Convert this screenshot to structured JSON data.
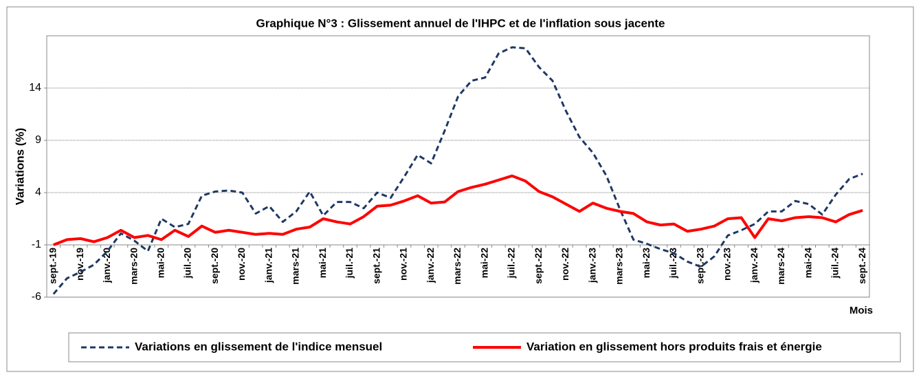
{
  "chart_data": {
    "type": "line",
    "title": "Graphique N°3 : Glissement annuel de l'IHPC et de l'inflation sous jacente",
    "y_label": "Variations (%)",
    "x_label": "Mois",
    "categories": [
      "sept.-19",
      null,
      "nov.-19",
      null,
      "janv.-20",
      null,
      "mars-20",
      null,
      "mai-20",
      null,
      "juil.-20",
      null,
      "sept.-20",
      null,
      "nov.-20",
      null,
      "janv.-21",
      null,
      "mars-21",
      null,
      "mai-21",
      null,
      "juil.-21",
      null,
      "sept.-21",
      null,
      "nov.-21",
      null,
      "janv.-22",
      null,
      "mars-22",
      null,
      "mai-22",
      null,
      "juil.-22",
      null,
      "sept.-22",
      null,
      "nov.-22",
      null,
      "janv.-23",
      null,
      "mars-23",
      null,
      "mai-23",
      null,
      "juil.-23",
      null,
      "sept.-23",
      null,
      "nov.-23",
      null,
      "janv.-24",
      null,
      "mars-24",
      null,
      "mai-24",
      null,
      "juil.-24",
      null,
      "sept.-24"
    ],
    "series": [
      {
        "name": "Variations en glissement de l'indice mensuel",
        "color": "#1f3864",
        "line_style": "dashed",
        "values": [
          -5.7,
          -4.2,
          -3.6,
          -2.9,
          -1.6,
          0.1,
          -0.6,
          -1.6,
          1.5,
          0.7,
          1.0,
          3.7,
          4.1,
          4.2,
          4.0,
          2.0,
          2.7,
          1.2,
          2.2,
          4.1,
          1.8,
          3.1,
          3.1,
          2.5,
          4.0,
          3.5,
          5.5,
          7.6,
          6.8,
          9.9,
          13.2,
          14.7,
          15.0,
          17.3,
          17.9,
          17.8,
          16.0,
          14.7,
          11.8,
          9.3,
          7.8,
          5.6,
          2.4,
          -0.5,
          -0.9,
          -1.4,
          -1.8,
          -2.6,
          -3.1,
          -2.1,
          -0.1,
          0.4,
          1.0,
          2.2,
          2.2,
          3.2,
          2.9,
          1.9,
          3.8,
          5.3,
          5.8
        ]
      },
      {
        "name": "Variation en glissement hors produits frais et énergie",
        "color": "#ff0000",
        "line_style": "solid",
        "values": [
          -1.0,
          -0.5,
          -0.4,
          -0.7,
          -0.3,
          0.4,
          -0.3,
          -0.1,
          -0.5,
          0.4,
          -0.2,
          0.8,
          0.2,
          0.4,
          0.2,
          0.0,
          0.1,
          0.0,
          0.5,
          0.7,
          1.5,
          1.2,
          1.0,
          1.7,
          2.7,
          2.8,
          3.2,
          3.7,
          3.0,
          3.1,
          4.1,
          4.5,
          4.8,
          5.2,
          5.6,
          5.1,
          4.1,
          3.6,
          2.9,
          2.2,
          3.0,
          2.5,
          2.2,
          2.0,
          1.2,
          0.9,
          1.0,
          0.3,
          0.5,
          0.8,
          1.5,
          1.6,
          -0.3,
          1.5,
          1.3,
          1.6,
          1.7,
          1.6,
          1.2,
          1.9,
          2.3
        ]
      }
    ],
    "ylim": [
      -6,
      19
    ],
    "yticks": [
      -6,
      -1,
      4,
      9,
      14
    ],
    "grid": true,
    "x_axis_crosses": -1,
    "legend": "bottom"
  }
}
